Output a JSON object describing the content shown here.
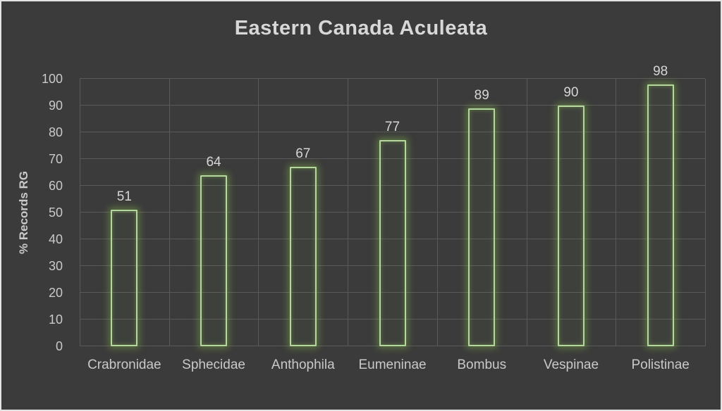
{
  "chart_data": {
    "type": "bar",
    "title": "Eastern Canada Aculeata",
    "categories": [
      "Crabronidae",
      "Sphecidae",
      "Anthophila",
      "Eumeninae",
      "Bombus",
      "Vespinae",
      "Polistinae"
    ],
    "values": [
      51,
      64,
      67,
      77,
      89,
      90,
      98
    ],
    "xlabel": "",
    "ylabel": "% Records RG",
    "ylim": [
      0,
      100
    ],
    "yticks": [
      0,
      10,
      20,
      30,
      40,
      50,
      60,
      70,
      80,
      90,
      100
    ],
    "grid": "both",
    "legend": "none",
    "bar_style": "outlined-glow",
    "data_labels": "above-bars",
    "colors": {
      "background": "#3b3b3b",
      "gridline": "#5a5a5a",
      "bar_outline": "#b4d79e",
      "bar_glow": "#92d050",
      "title_text": "#d8d8d8",
      "axis_text": "#c9c9c9",
      "data_label_text": "#d6d6d6"
    }
  }
}
